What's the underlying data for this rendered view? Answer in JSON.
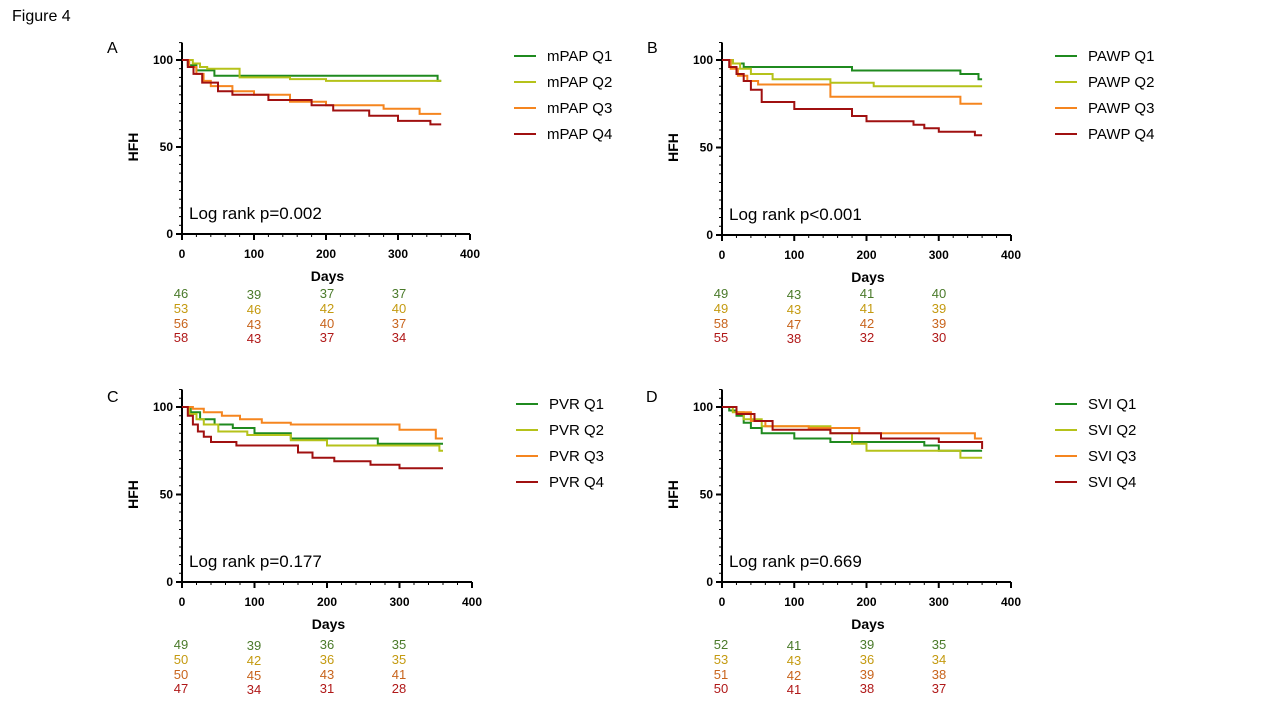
{
  "figure_title": "Figure 4",
  "colors": {
    "Q1": "#1f8a1f",
    "Q2": "#b5c21a",
    "Q3": "#f5851f",
    "Q4": "#a01010",
    "risk_Q1": "#4a7a2a",
    "risk_Q2": "#c49a10",
    "risk_Q3": "#c8641c",
    "risk_Q4": "#b01818"
  },
  "chart_data": [
    {
      "type": "line",
      "panel": "A",
      "xlabel": "Days",
      "ylabel": "HFH",
      "xlim": [
        0,
        400
      ],
      "ylim": [
        0,
        100
      ],
      "xticks": [
        "0",
        "100",
        "200",
        "300",
        "400"
      ],
      "yticks": [
        "0",
        "50",
        "100"
      ],
      "annotation": "Log rank p=0.002",
      "series": [
        {
          "name": "mPAP Q1",
          "key": "Q1",
          "x": [
            0,
            8,
            20,
            45,
            145,
            355,
            360
          ],
          "y": [
            100,
            97,
            94,
            91,
            91,
            88,
            88
          ]
        },
        {
          "name": "mPAP Q2",
          "key": "Q2",
          "x": [
            0,
            15,
            25,
            35,
            80,
            150,
            200,
            360
          ],
          "y": [
            100,
            98,
            96,
            95,
            90,
            89,
            88,
            88
          ]
        },
        {
          "name": "mPAP Q3",
          "key": "Q3",
          "x": [
            0,
            10,
            20,
            30,
            40,
            70,
            100,
            150,
            200,
            280,
            330,
            360
          ],
          "y": [
            100,
            96,
            92,
            88,
            85,
            82,
            80,
            76,
            74,
            72,
            69,
            69
          ]
        },
        {
          "name": "mPAP Q4",
          "key": "Q4",
          "x": [
            0,
            8,
            16,
            28,
            50,
            70,
            120,
            180,
            210,
            260,
            300,
            345,
            360
          ],
          "y": [
            100,
            96,
            92,
            87,
            82,
            80,
            77,
            74,
            71,
            68,
            65,
            63,
            63
          ]
        }
      ],
      "risk_table": [
        [
          "46",
          "39",
          "37",
          "37"
        ],
        [
          "53",
          "46",
          "42",
          "40"
        ],
        [
          "56",
          "43",
          "40",
          "37"
        ],
        [
          "58",
          "43",
          "37",
          "34"
        ]
      ]
    },
    {
      "type": "line",
      "panel": "B",
      "xlabel": "Days",
      "ylabel": "HFH",
      "xlim": [
        0,
        400
      ],
      "ylim": [
        0,
        100
      ],
      "xticks": [
        "0",
        "100",
        "200",
        "300",
        "400"
      ],
      "yticks": [
        "0",
        "50",
        "100"
      ],
      "annotation": "Log rank p<0.001",
      "series": [
        {
          "name": "PAWP Q1",
          "key": "Q1",
          "x": [
            0,
            15,
            30,
            180,
            330,
            355,
            360
          ],
          "y": [
            100,
            98,
            96,
            94,
            92,
            89,
            89
          ]
        },
        {
          "name": "PAWP Q2",
          "key": "Q2",
          "x": [
            0,
            15,
            25,
            40,
            70,
            150,
            210,
            360
          ],
          "y": [
            100,
            98,
            95,
            92,
            89,
            87,
            85,
            85
          ]
        },
        {
          "name": "PAWP Q3",
          "key": "Q3",
          "x": [
            0,
            12,
            22,
            35,
            50,
            145,
            150,
            330,
            360
          ],
          "y": [
            100,
            95,
            91,
            88,
            86,
            86,
            79,
            75,
            75
          ]
        },
        {
          "name": "PAWP Q4",
          "key": "Q4",
          "x": [
            0,
            10,
            20,
            30,
            40,
            55,
            100,
            180,
            200,
            265,
            280,
            300,
            350,
            360
          ],
          "y": [
            100,
            96,
            92,
            88,
            83,
            76,
            72,
            68,
            65,
            63,
            61,
            59,
            57,
            57
          ]
        }
      ],
      "risk_table": [
        [
          "49",
          "43",
          "41",
          "40"
        ],
        [
          "49",
          "43",
          "41",
          "39"
        ],
        [
          "58",
          "47",
          "42",
          "39"
        ],
        [
          "55",
          "38",
          "32",
          "30"
        ]
      ]
    },
    {
      "type": "line",
      "panel": "C",
      "xlabel": "Days",
      "ylabel": "HFH",
      "xlim": [
        0,
        400
      ],
      "ylim": [
        0,
        100
      ],
      "xticks": [
        "0",
        "100",
        "200",
        "300",
        "400"
      ],
      "yticks": [
        "0",
        "50",
        "100"
      ],
      "annotation": "Log rank p=0.177",
      "series": [
        {
          "name": "PVR Q1",
          "key": "Q1",
          "x": [
            0,
            12,
            25,
            45,
            70,
            100,
            150,
            270,
            360
          ],
          "y": [
            100,
            97,
            93,
            90,
            88,
            85,
            82,
            79,
            79
          ]
        },
        {
          "name": "PVR Q2",
          "key": "Q2",
          "x": [
            0,
            10,
            20,
            30,
            50,
            90,
            150,
            200,
            355,
            360
          ],
          "y": [
            100,
            96,
            93,
            90,
            86,
            84,
            81,
            78,
            75,
            75
          ]
        },
        {
          "name": "PVR Q3",
          "key": "Q3",
          "x": [
            0,
            15,
            30,
            55,
            80,
            110,
            150,
            300,
            350,
            360
          ],
          "y": [
            100,
            99,
            97,
            95,
            93,
            91,
            90,
            87,
            82,
            82
          ]
        },
        {
          "name": "PVR Q4",
          "key": "Q4",
          "x": [
            0,
            8,
            15,
            22,
            30,
            40,
            75,
            160,
            180,
            210,
            260,
            300,
            360
          ],
          "y": [
            100,
            95,
            90,
            86,
            83,
            80,
            78,
            74,
            71,
            69,
            67,
            65,
            65
          ]
        }
      ],
      "risk_table": [
        [
          "49",
          "39",
          "36",
          "35"
        ],
        [
          "50",
          "42",
          "36",
          "35"
        ],
        [
          "50",
          "45",
          "43",
          "41"
        ],
        [
          "47",
          "34",
          "31",
          "28"
        ]
      ]
    },
    {
      "type": "line",
      "panel": "D",
      "xlabel": "Days",
      "ylabel": "HFH",
      "xlim": [
        0,
        400
      ],
      "ylim": [
        0,
        100
      ],
      "xticks": [
        "0",
        "100",
        "200",
        "300",
        "400"
      ],
      "yticks": [
        "0",
        "50",
        "100"
      ],
      "annotation": "Log rank p=0.669",
      "series": [
        {
          "name": "SVI Q1",
          "key": "Q1",
          "x": [
            0,
            10,
            20,
            30,
            40,
            55,
            100,
            150,
            280,
            300,
            360
          ],
          "y": [
            100,
            98,
            95,
            91,
            88,
            85,
            82,
            80,
            78,
            75,
            75
          ]
        },
        {
          "name": "SVI Q2",
          "key": "Q2",
          "x": [
            0,
            15,
            30,
            55,
            150,
            180,
            200,
            330,
            360
          ],
          "y": [
            100,
            97,
            93,
            89,
            85,
            79,
            75,
            71,
            71
          ]
        },
        {
          "name": "SVI Q3",
          "key": "Q3",
          "x": [
            0,
            20,
            40,
            60,
            120,
            190,
            350,
            360
          ],
          "y": [
            100,
            97,
            92,
            89,
            88,
            85,
            82,
            82
          ]
        },
        {
          "name": "SVI Q4",
          "key": "Q4",
          "x": [
            0,
            20,
            45,
            70,
            150,
            220,
            300,
            360
          ],
          "y": [
            100,
            96,
            92,
            87,
            85,
            82,
            80,
            76
          ]
        }
      ],
      "risk_table": [
        [
          "52",
          "41",
          "39",
          "35"
        ],
        [
          "53",
          "43",
          "36",
          "34"
        ],
        [
          "51",
          "42",
          "39",
          "38"
        ],
        [
          "50",
          "41",
          "38",
          "37"
        ]
      ]
    }
  ]
}
